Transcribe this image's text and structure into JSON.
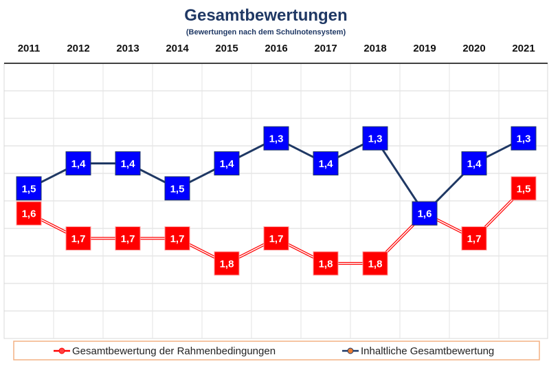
{
  "chart_data": {
    "type": "line",
    "title": "Gesamtbewertungen",
    "subtitle": "(Bewertungen nach dem Schulnotensystem)",
    "categories": [
      "2011",
      "2012",
      "2013",
      "2014",
      "2015",
      "2016",
      "2017",
      "2018",
      "2019",
      "2020",
      "2021"
    ],
    "ylim": [
      2.1,
      1.0
    ],
    "y_axis_inverted": true,
    "grid": true,
    "legend_position": "bottom",
    "series": [
      {
        "name": "Gesamtbewertung der Rahmenbedingungen",
        "color": "#ff0000",
        "line_color": "#ff0000",
        "values": [
          1.6,
          1.7,
          1.7,
          1.7,
          1.8,
          1.7,
          1.8,
          1.8,
          1.6,
          1.7,
          1.5
        ],
        "labels": [
          "1,6",
          "1,7",
          "1,7",
          "1,7",
          "1,8",
          "1,7",
          "1,8",
          "1,8",
          "1,6",
          "1,7",
          "1,5"
        ]
      },
      {
        "name": "Inhaltliche Gesamtbewertung",
        "color": "#0000ff",
        "line_color": "#1f3864",
        "values": [
          1.5,
          1.4,
          1.4,
          1.5,
          1.4,
          1.3,
          1.4,
          1.3,
          1.6,
          1.4,
          1.3
        ],
        "labels": [
          "1,5",
          "1,4",
          "1,4",
          "1,5",
          "1,4",
          "1,3",
          "1,4",
          "1,3",
          "1,6",
          "1,4",
          "1,3"
        ]
      }
    ]
  }
}
